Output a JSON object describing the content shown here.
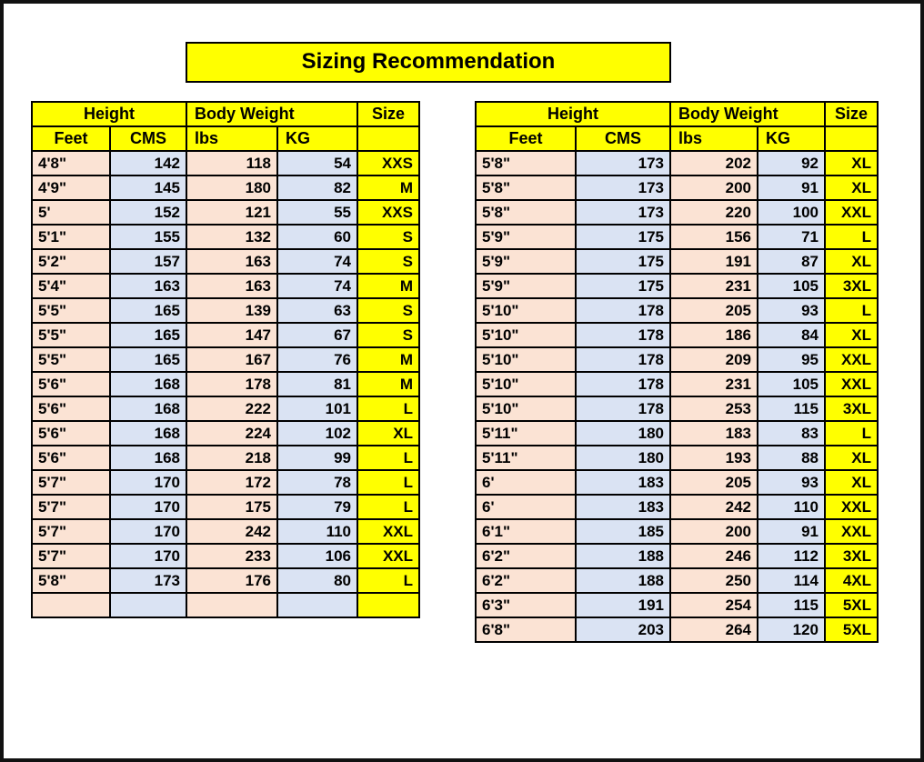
{
  "title": "Sizing Recommendation",
  "headers": {
    "height": "Height",
    "body_weight": "Body Weight",
    "size": "Size",
    "feet": "Feet",
    "cms": "CMS",
    "lbs": "lbs",
    "kg": "KG"
  },
  "colors": {
    "header_yellow": "#FFFF00",
    "feet_lbs_peach": "#FBE3D4",
    "cms_kg_blue": "#DAE3F3",
    "grid_black": "#000000",
    "page_white": "#FFFFFF"
  },
  "chart_data": [
    {
      "type": "table",
      "title": "Sizing Recommendation (left panel)",
      "column_groups": [
        "Height",
        "Height",
        "Body Weight",
        "Body Weight",
        "Size"
      ],
      "columns": [
        "Feet",
        "CMS",
        "lbs",
        "KG",
        "Size"
      ],
      "rows": [
        [
          "4'8\"",
          "142",
          "118",
          "54",
          "XXS"
        ],
        [
          "4'9\"",
          "145",
          "180",
          "82",
          "M"
        ],
        [
          "5'",
          "152",
          "121",
          "55",
          "XXS"
        ],
        [
          "5'1\"",
          "155",
          "132",
          "60",
          "S"
        ],
        [
          "5'2\"",
          "157",
          "163",
          "74",
          "S"
        ],
        [
          "5'4\"",
          "163",
          "163",
          "74",
          "M"
        ],
        [
          "5'5\"",
          "165",
          "139",
          "63",
          "S"
        ],
        [
          "5'5\"",
          "165",
          "147",
          "67",
          "S"
        ],
        [
          "5'5\"",
          "165",
          "167",
          "76",
          "M"
        ],
        [
          "5'6\"",
          "168",
          "178",
          "81",
          "M"
        ],
        [
          "5'6\"",
          "168",
          "222",
          "101",
          "L"
        ],
        [
          "5'6\"",
          "168",
          "224",
          "102",
          "XL"
        ],
        [
          "5'6\"",
          "168",
          "218",
          "99",
          "L"
        ],
        [
          "5'7\"",
          "170",
          "172",
          "78",
          "L"
        ],
        [
          "5'7\"",
          "170",
          "175",
          "79",
          "L"
        ],
        [
          "5'7\"",
          "170",
          "242",
          "110",
          "XXL"
        ],
        [
          "5'7\"",
          "170",
          "233",
          "106",
          "XXL"
        ],
        [
          "5'8\"",
          "173",
          "176",
          "80",
          "L"
        ],
        [
          "",
          "",
          "",
          "",
          ""
        ]
      ]
    },
    {
      "type": "table",
      "title": "Sizing Recommendation (right panel)",
      "column_groups": [
        "Height",
        "Height",
        "Body Weight",
        "Body Weight",
        "Size"
      ],
      "columns": [
        "Feet",
        "CMS",
        "lbs",
        "KG",
        "Size"
      ],
      "rows": [
        [
          "5'8\"",
          "173",
          "202",
          "92",
          "XL"
        ],
        [
          "5'8\"",
          "173",
          "200",
          "91",
          "XL"
        ],
        [
          "5'8\"",
          "173",
          "220",
          "100",
          "XXL"
        ],
        [
          "5'9\"",
          "175",
          "156",
          "71",
          "L"
        ],
        [
          "5'9\"",
          "175",
          "191",
          "87",
          "XL"
        ],
        [
          "5'9\"",
          "175",
          "231",
          "105",
          "3XL"
        ],
        [
          "5'10\"",
          "178",
          "205",
          "93",
          "L"
        ],
        [
          "5'10\"",
          "178",
          "186",
          "84",
          "XL"
        ],
        [
          "5'10\"",
          "178",
          "209",
          "95",
          "XXL"
        ],
        [
          "5'10\"",
          "178",
          "231",
          "105",
          "XXL"
        ],
        [
          "5'10\"",
          "178",
          "253",
          "115",
          "3XL"
        ],
        [
          "5'11\"",
          "180",
          "183",
          "83",
          "L"
        ],
        [
          "5'11\"",
          "180",
          "193",
          "88",
          "XL"
        ],
        [
          "6'",
          "183",
          "205",
          "93",
          "XL"
        ],
        [
          "6'",
          "183",
          "242",
          "110",
          "XXL"
        ],
        [
          "6'1\"",
          "185",
          "200",
          "91",
          "XXL"
        ],
        [
          "6'2\"",
          "188",
          "246",
          "112",
          "3XL"
        ],
        [
          "6'2\"",
          "188",
          "250",
          "114",
          "4XL"
        ],
        [
          "6'3\"",
          "191",
          "254",
          "115",
          "5XL"
        ],
        [
          "6'8\"",
          "203",
          "264",
          "120",
          "5XL"
        ]
      ]
    }
  ]
}
